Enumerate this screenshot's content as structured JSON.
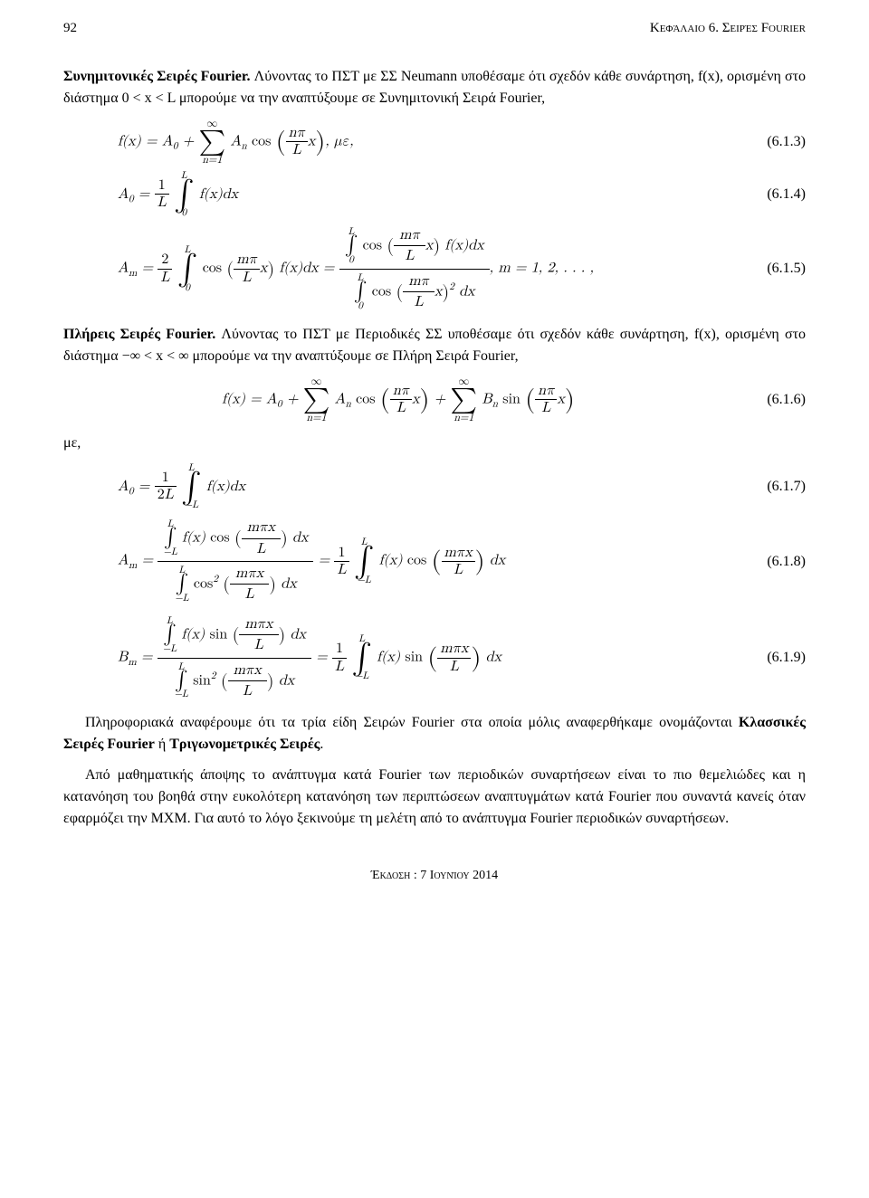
{
  "header": {
    "page": "92",
    "chapter": "Κεφάλαιο 6. Σειρές Fourier"
  },
  "s1": {
    "heading": "Συνημιτονικές Σειρές Fourier.",
    "body": "Λύνοντας το ΠΣΤ με ΣΣ Neumann υποθέσαμε ότι σχεδόν κάθε συνάρτηση, f(x), ορισμένη στο διάστημα 0 < x < L μπορούμε να την αναπτύξουμε σε Συνημιτονική Σειρά Fourier,"
  },
  "eqnum": {
    "e613": "(6.1.3)",
    "e614": "(6.1.4)",
    "e615": "(6.1.5)",
    "e616": "(6.1.6)",
    "e617": "(6.1.7)",
    "e618": "(6.1.8)",
    "e619": "(6.1.9)"
  },
  "e613_tail": ",   με,",
  "e615_tail": ",   m = 1, 2, . . . ,",
  "s2": {
    "heading": "Πλήρεις Σειρές Fourier.",
    "body": "Λύνοντας το ΠΣΤ με Περιοδικές ΣΣ υποθέσαμε ότι σχεδόν κάθε συνάρτηση, f(x), ορισμένη στο διάστημα −∞ < x < ∞ μπορούμε να την αναπτύξουμε σε Πλήρη Σειρά Fourier,"
  },
  "word_me": "με,",
  "closing": {
    "p1": "Πληροφοριακά αναφέρουμε ότι τα τρία είδη Σειρών Fourier στα οποία μόλις αναφερθήκαμε ονομάζονται ",
    "p1_bold": "Κλασσικές Σειρές Fourier",
    "p1_mid": " ή ",
    "p1_bold2": "Τριγωνομετρικές Σειρές",
    "p1_end": ".",
    "p2": "Από μαθηματικής άποψης το ανάπτυγμα κατά Fourier των περιοδικών συναρτήσεων είναι το πιο θεμελιώδες και η κατανόηση του βοηθά στην ευκολότερη κατανόηση των περιπτώσεων αναπτυγμάτων κατά Fourier που συναντά κανείς όταν εφαρμόζει την MXM. Για αυτό το λόγο ξεκινούμε τη μελέτη από το ανάπτυγμα Fourier περιοδικών συναρτήσεων."
  },
  "footer": "Έκδοση : 7 Ιουνίου 2014"
}
